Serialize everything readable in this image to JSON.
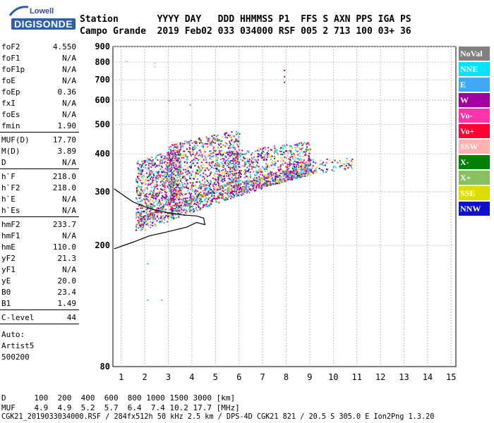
{
  "logo": {
    "line1": "Lowell",
    "line2": "DIGISONDE"
  },
  "header": {
    "row1": "Station       YYYY DAY   DDD HHMMSS P1  FFS S AXN PPS IGA PS",
    "row2": "Campo Grande  2019 Feb02 033 034000 RSF 005 2 713 100 03+ 36"
  },
  "params": {
    "group1": [
      {
        "k": "foF2",
        "v": "4.550"
      },
      {
        "k": "foF1",
        "v": "N/A"
      },
      {
        "k": "foF1p",
        "v": "N/A"
      },
      {
        "k": "foE",
        "v": "N/A"
      },
      {
        "k": "foEp",
        "v": "0.36"
      },
      {
        "k": "fxI",
        "v": "N/A"
      },
      {
        "k": "foEs",
        "v": "N/A"
      },
      {
        "k": "fmin",
        "v": "1.90"
      }
    ],
    "group2": [
      {
        "k": "MUF(D)",
        "v": "17.70"
      },
      {
        "k": "M(D)",
        "v": "3.89"
      },
      {
        "k": "D",
        "v": "N/A"
      }
    ],
    "group3": [
      {
        "k": "h`F",
        "v": "218.0"
      },
      {
        "k": "h`F2",
        "v": "218.0"
      },
      {
        "k": "h`E",
        "v": "N/A"
      },
      {
        "k": "h`Es",
        "v": "N/A"
      }
    ],
    "group4": [
      {
        "k": "hmF2",
        "v": "233.7"
      },
      {
        "k": "hmF1",
        "v": "N/A"
      },
      {
        "k": "hmE",
        "v": "110.0"
      },
      {
        "k": "yF2",
        "v": "21.3"
      },
      {
        "k": "yF1",
        "v": "N/A"
      },
      {
        "k": "yE",
        "v": "20.0"
      },
      {
        "k": "B0",
        "v": "23.4"
      },
      {
        "k": "B1",
        "v": "1.49"
      }
    ],
    "group5": [
      {
        "k": "C-level",
        "v": "44"
      }
    ]
  },
  "autoscale": {
    "line1": "Auto:",
    "line2": "Artist5",
    "line3": "500200"
  },
  "bottom": {
    "d_row": "D      100  200  400  600  800 1000 1500 3000 [km]",
    "muf_row": "MUF    4.9  4.9  5.2  5.7  6.4  7.4 10.2 17.7 [MHz]",
    "file_row": "CGK21_2019033034000.RSF / 284fx512h 50 kHz 2.5 km / DPS-4D CGK21 821 / 20.5 S 305.0 E Ion2Png 1.3.20"
  },
  "legend": [
    {
      "label": "NoVal",
      "color": "#808080",
      "text": "#ffffff"
    },
    {
      "label": "NNE",
      "color": "#00e5ff",
      "text": "#ffffff"
    },
    {
      "label": "E",
      "color": "#3fa9f5",
      "text": "#ffffff"
    },
    {
      "label": "W",
      "color": "#a000a0",
      "text": "#ffffff"
    },
    {
      "label": "Vo-",
      "color": "#ff33aa",
      "text": "#ffffff"
    },
    {
      "label": "Vo+",
      "color": "#ff0033",
      "text": "#ffffff"
    },
    {
      "label": "SSW",
      "color": "#ffb0b0",
      "text": "#ffffff"
    },
    {
      "label": "X-",
      "color": "#008000",
      "text": "#ffffff"
    },
    {
      "label": "X+",
      "color": "#88c060",
      "text": "#ffffff"
    },
    {
      "label": "SSE",
      "color": "#dddd00",
      "text": "#ffffff"
    },
    {
      "label": "NNW",
      "color": "#1010cc",
      "text": "#ffffff"
    }
  ],
  "chart_data": {
    "type": "scatter",
    "title": "",
    "xlabel": "",
    "ylabel": "",
    "xlim": [
      0.65,
      15.2
    ],
    "ylim": [
      80,
      900
    ],
    "y_scale": "log",
    "x_ticks": [
      1,
      2,
      3,
      4,
      5,
      6,
      7,
      8,
      9,
      10,
      11,
      12,
      13,
      14,
      15
    ],
    "y_ticks": [
      80,
      200,
      300,
      400,
      500,
      600,
      700,
      800,
      900
    ],
    "grid": true,
    "legend_position": "right",
    "echo_clusters": [
      {
        "f_range": [
          1.6,
          3.5
        ],
        "h_range": [
          225,
          420
        ]
      },
      {
        "f_range": [
          3.0,
          6.0
        ],
        "h_range": [
          250,
          480
        ]
      },
      {
        "f_range": [
          5.5,
          9.0
        ],
        "h_range": [
          290,
          440
        ]
      },
      {
        "f_range": [
          8.0,
          10.8
        ],
        "h_range": [
          340,
          390
        ]
      }
    ],
    "isolated_echoes": [
      {
        "f": 1.2,
        "h": 808
      },
      {
        "f": 2.4,
        "h": 797
      },
      {
        "f": 2.4,
        "h": 775
      },
      {
        "f": 7.9,
        "h": 755
      },
      {
        "f": 7.9,
        "h": 720
      },
      {
        "f": 7.9,
        "h": 690
      },
      {
        "f": 3.9,
        "h": 582
      },
      {
        "f": 3.0,
        "h": 600
      },
      {
        "f": 2.1,
        "h": 175
      },
      {
        "f": 2.1,
        "h": 133
      },
      {
        "f": 2.7,
        "h": 133
      }
    ],
    "trace": [
      {
        "f": 0.7,
        "h": 195
      },
      {
        "f": 1.5,
        "h": 205
      },
      {
        "f": 2.2,
        "h": 215
      },
      {
        "f": 3.0,
        "h": 222
      },
      {
        "f": 3.8,
        "h": 230
      },
      {
        "f": 4.2,
        "h": 238
      },
      {
        "f": 4.55,
        "h": 234
      },
      {
        "f": 4.5,
        "h": 246
      },
      {
        "f": 4.2,
        "h": 250
      },
      {
        "f": 3.6,
        "h": 252
      },
      {
        "f": 3.0,
        "h": 256
      },
      {
        "f": 2.4,
        "h": 262
      },
      {
        "f": 2.0,
        "h": 268
      },
      {
        "f": 1.5,
        "h": 278
      },
      {
        "f": 1.1,
        "h": 292
      },
      {
        "f": 0.7,
        "h": 307
      }
    ]
  }
}
